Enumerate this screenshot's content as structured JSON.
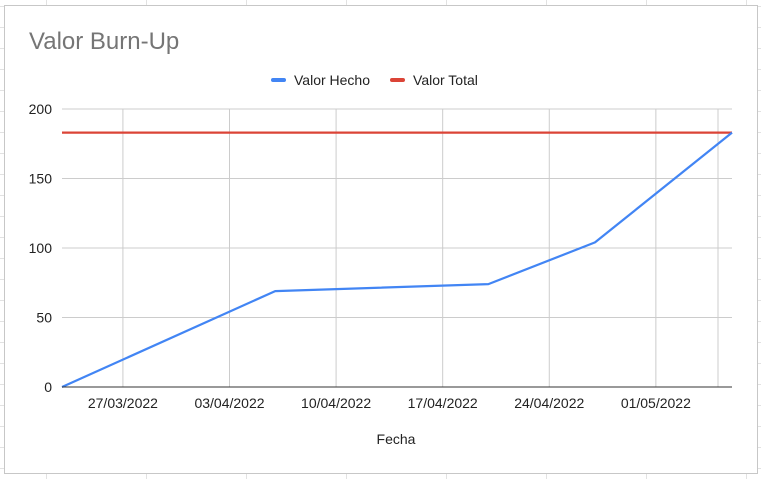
{
  "chart_data": {
    "type": "line",
    "title": "Valor Burn-Up",
    "xlabel": "Fecha",
    "ylabel": "",
    "ylim": [
      0,
      200
    ],
    "yticks": [
      0,
      50,
      100,
      150,
      200
    ],
    "xticks": [
      "27/03/2022",
      "03/04/2022",
      "10/04/2022",
      "17/04/2022",
      "24/04/2022",
      "01/05/2022"
    ],
    "xlim": [
      "2022-03-23",
      "2022-05-06"
    ],
    "grid": true,
    "legend_position": "top",
    "series": [
      {
        "name": "Valor Hecho",
        "color": "#4285f4",
        "points": [
          {
            "x": "2022-03-23",
            "y": 0
          },
          {
            "x": "2022-04-06",
            "y": 69
          },
          {
            "x": "2022-04-20",
            "y": 74
          },
          {
            "x": "2022-04-27",
            "y": 104
          },
          {
            "x": "2022-05-06",
            "y": 183
          }
        ]
      },
      {
        "name": "Valor Total",
        "color": "#db4437",
        "points": [
          {
            "x": "2022-03-23",
            "y": 183
          },
          {
            "x": "2022-05-06",
            "y": 183
          }
        ]
      }
    ]
  }
}
